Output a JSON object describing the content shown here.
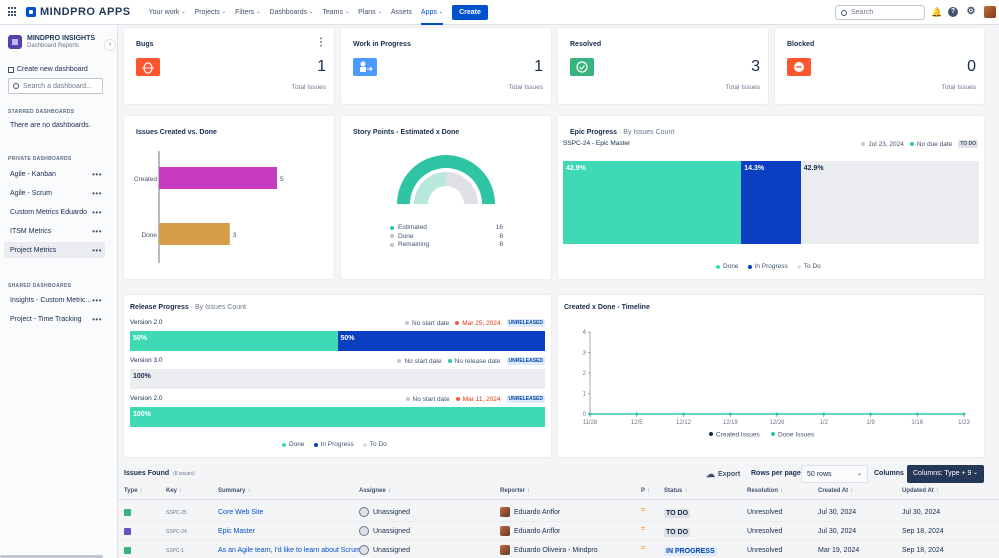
{
  "header": {
    "brand": "MINDPRO APPS",
    "nav": [
      {
        "label": "Your work",
        "caret": "⌄"
      },
      {
        "label": "Projects",
        "caret": "⌄"
      },
      {
        "label": "Filters",
        "caret": "⌄"
      },
      {
        "label": "Dashboards",
        "caret": "⌄"
      },
      {
        "label": "Teams",
        "caret": "⌄"
      },
      {
        "label": "Plans",
        "caret": "⌄"
      },
      {
        "label": "Assets",
        "caret": ""
      },
      {
        "label": "Apps",
        "caret": "⌄"
      }
    ],
    "active_nav": "Apps",
    "create": "Create",
    "search_placeholder": "Search",
    "help_icon": "?"
  },
  "sidebar": {
    "title": "MINDPRO INSIGHTS",
    "subtitle": "Dashboard Reports",
    "collapse": "‹",
    "create_dashboard": "Create new dashboard",
    "search_placeholder": "Search a dashboard...",
    "starred_heading": "STARRED DASHBOARDS",
    "starred_empty": "There are no dashboards.",
    "private_heading": "PRIVATE DASHBOARDS",
    "private_items": [
      "Agile - Kanban",
      "Agile - Scrum",
      "Custom Metrics Eduardo",
      "ITSM Metrics",
      "Project Metrics"
    ],
    "selected_item": "Project Metrics",
    "shared_heading": "SHARED DASHBOARDS",
    "shared_items": [
      "Insights - Custom Metric...",
      "Project - Time Tracking"
    ],
    "more": "•••"
  },
  "stats": [
    {
      "title": "Bugs",
      "value": "1",
      "sub": "Total Issues",
      "color": "#ff5630",
      "icon": "bug-icon"
    },
    {
      "title": "Work in Progress",
      "value": "1",
      "sub": "Total Issues",
      "color": "#4c9aff",
      "icon": "person-arrow-icon"
    },
    {
      "title": "Resolved",
      "value": "3",
      "sub": "Total Issues",
      "color": "#36b37e",
      "icon": "check-circle-icon"
    },
    {
      "title": "Blocked",
      "value": "0",
      "sub": "Total Issues",
      "color": "#ff5630",
      "icon": "blocked-icon"
    }
  ],
  "stats_menu": "⋮",
  "created_vs_done": {
    "title": "Issues Created vs. Done",
    "chart_data": {
      "type": "bar",
      "orientation": "horizontal",
      "categories": [
        "Created",
        "Done"
      ],
      "values": [
        5,
        3
      ],
      "colors": [
        "#c63bbd",
        "#d69d49"
      ]
    }
  },
  "story_points": {
    "title": "Story Points - Estimated x Done",
    "chart_data": {
      "type": "pie",
      "variant": "gauge",
      "series": [
        {
          "name": "Estimated",
          "value": 16,
          "color": "#2fc5a4"
        },
        {
          "name": "Done",
          "value": 8,
          "color": "#b8e8dc"
        },
        {
          "name": "Remaining",
          "value": 8,
          "color": "#c1c7d0"
        }
      ]
    }
  },
  "epic_progress": {
    "title": "Epic Progress",
    "subtitle": "· By Issues Count",
    "epic": "SSPC-24 - Epic Master",
    "date": "Jul 23, 2024",
    "due": "No due date",
    "status": "TO DO",
    "chart_data": {
      "type": "bar",
      "stacked": true,
      "series": [
        {
          "name": "Done",
          "value": 42.9,
          "label": "42.9%",
          "color": "#40d9b5"
        },
        {
          "name": "In Progress",
          "value": 14.3,
          "label": "14.3%",
          "color": "#0a3fc1"
        },
        {
          "name": "To Do",
          "value": 42.9,
          "label": "42.9%",
          "color": "#ebecf0"
        }
      ]
    },
    "legend": [
      "Done",
      "In Progress",
      "To Do"
    ]
  },
  "release_progress": {
    "title": "Release Progress",
    "subtitle": "· By Issues Count",
    "releases": [
      {
        "version": "Version 2.0",
        "start": "No start date",
        "release": "Mar 25, 2024",
        "release_red": true,
        "status": "UNRELEASED",
        "segments": [
          {
            "label": "50%",
            "value": 50,
            "color": "#40d9b5"
          },
          {
            "label": "50%",
            "value": 50,
            "color": "#0a3fc1"
          }
        ]
      },
      {
        "version": "Version 3.0",
        "start": "No start date",
        "release": "No release date",
        "release_red": false,
        "status": "UNRELEASED",
        "segments": [
          {
            "label": "100%",
            "value": 100,
            "color": "#ebecf0"
          }
        ]
      },
      {
        "version": "Version 2.0",
        "start": "No start date",
        "release": "Mar 11, 2024",
        "release_red": true,
        "status": "UNRELEASED",
        "segments": [
          {
            "label": "100%",
            "value": 100,
            "color": "#40d9b5"
          }
        ]
      }
    ],
    "legend": [
      "Done",
      "In Progress",
      "To Do"
    ]
  },
  "timeline": {
    "title": "Created x Done - Timeline",
    "chart_data": {
      "type": "line",
      "x": [
        "11/28",
        "12/5",
        "12/12",
        "12/19",
        "12/26",
        "1/2",
        "1/9",
        "1/16",
        "1/23"
      ],
      "series": [
        {
          "name": "Created Issues",
          "values": [
            0,
            0,
            0,
            0,
            0,
            0,
            0,
            0,
            0
          ],
          "color": "#172b4d"
        },
        {
          "name": "Done Issues",
          "values": [
            0,
            0,
            0,
            0,
            0,
            0,
            0,
            0,
            0
          ],
          "color": "#2fc5a4"
        }
      ],
      "yticks": [
        "0",
        "1",
        "2",
        "3",
        "4"
      ],
      "ylim": [
        0,
        4
      ]
    }
  },
  "issues": {
    "title": "Issues Found",
    "count": "(8 issues)",
    "export": "Export",
    "rows_label": "Rows per page",
    "rows_value": "50 rows",
    "columns_label": "Columns",
    "columns_button": "Columns: Type + 9",
    "headers": [
      "Type",
      "Key",
      "Summary",
      "Assignee",
      "Reporter",
      "P",
      "Status",
      "Resolution",
      "Created At",
      "Updated At"
    ],
    "rows": [
      {
        "type_color": "#36b37e",
        "key": "SSPC-25",
        "summary": "Core Web Site",
        "assignee": "Unassigned",
        "reporter": "Eduardo Anflor",
        "priority": "=",
        "status": "TO DO",
        "resolution": "Unresolved",
        "created": "Jul 30, 2024",
        "updated": "Jul 30, 2024"
      },
      {
        "type_color": "#6554c0",
        "key": "SSPC-24",
        "summary": "Epic Master",
        "assignee": "Unassigned",
        "reporter": "Eduardo Anflor",
        "priority": "=",
        "status": "TO DO",
        "resolution": "Unresolved",
        "created": "Jul 30, 2024",
        "updated": "Sep 18, 2024"
      },
      {
        "type_color": "#36b37e",
        "key": "SSPC-1",
        "summary": "As an Agile team, I'd like to learn about Scrum",
        "assignee": "Unassigned",
        "reporter": "Eduardo Oliveira - Mindpro",
        "priority": "=",
        "status": "IN PROGRESS",
        "resolution": "Unresolved",
        "created": "Mar 19, 2024",
        "updated": "Sep 18, 2024"
      }
    ],
    "sort_glyph": "↕"
  }
}
